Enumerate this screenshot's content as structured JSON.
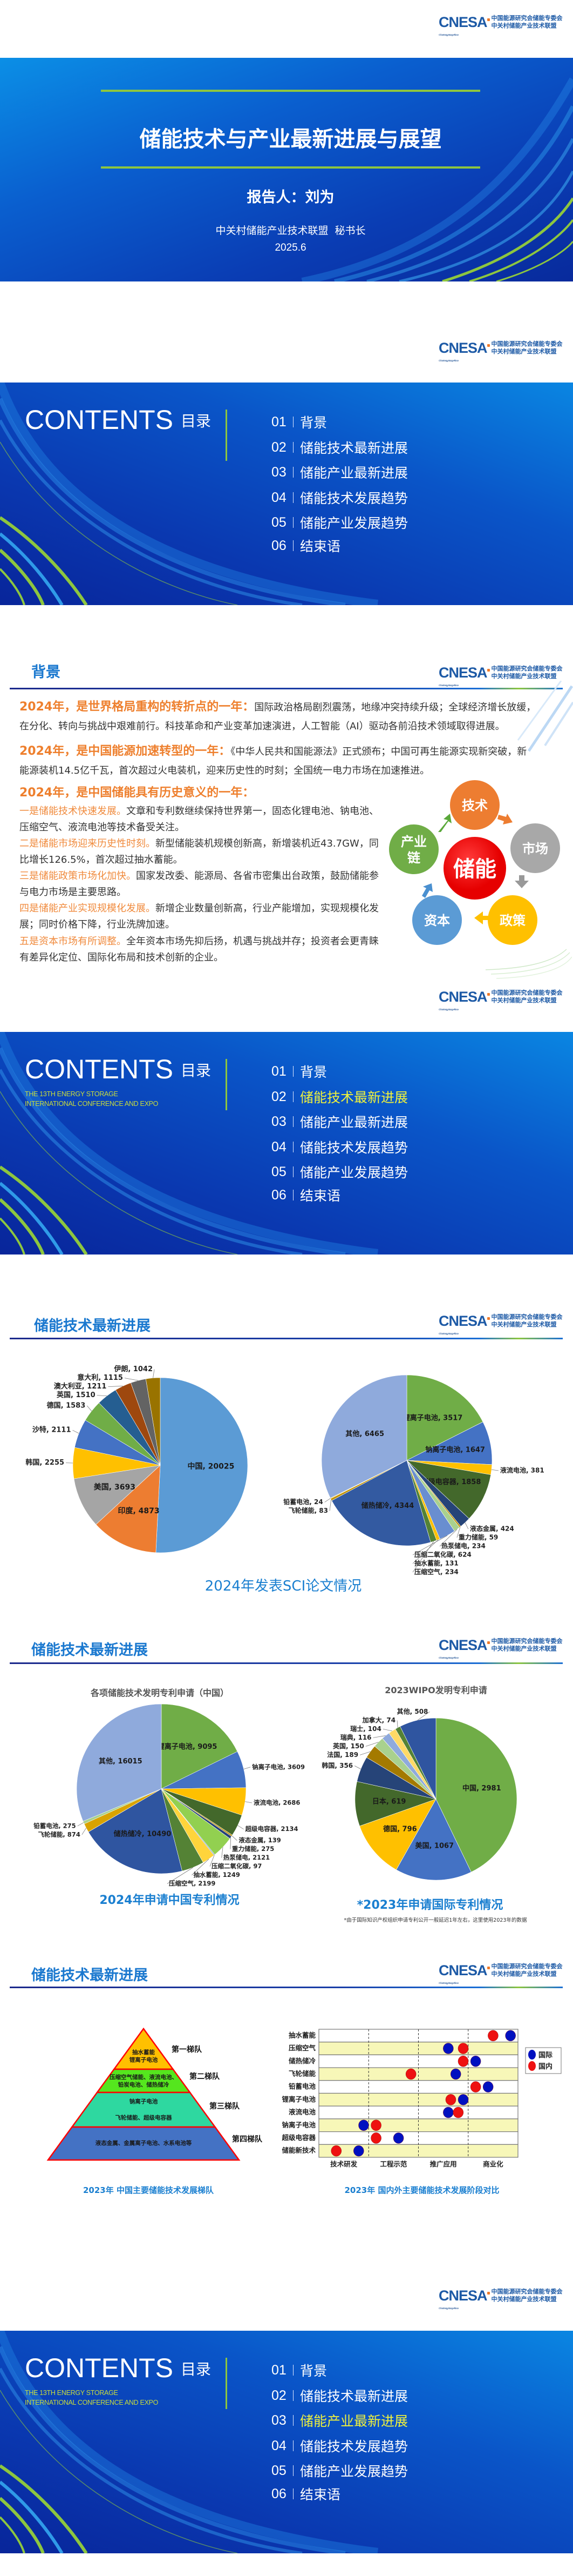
{
  "logo": {
    "mark": "CNESA",
    "english": "China Energy Storage Alliance",
    "line1": "中国能源研究会储能专委会",
    "line2": "中关村储能产业技术联盟"
  },
  "title_slide": {
    "title": "储能技术与产业最新进展与展望",
    "reporter": "报告人：刘为",
    "org": "中关村储能产业技术联盟  秘书长",
    "date": "2025.6"
  },
  "contents": {
    "heading": "CONTENTS",
    "heading_cn": "目录",
    "subtitle_line1": "THE 13TH ENERGY STORAGE",
    "subtitle_line2": "INTERNATIONAL CONFERENCE AND EXPO",
    "items": [
      {
        "num": "01",
        "label": "背景"
      },
      {
        "num": "02",
        "label": "储能技术最新进展"
      },
      {
        "num": "03",
        "label": "储能产业最新进展"
      },
      {
        "num": "04",
        "label": "储能技术发展趋势"
      },
      {
        "num": "05",
        "label": "储能产业发展趋势"
      },
      {
        "num": "06",
        "label": "结束语"
      }
    ],
    "highlight_color": "#f0f23c",
    "slides": [
      {
        "show_subtitle": false,
        "highlighted_item": null
      },
      {
        "show_subtitle": true,
        "highlighted_item": 1
      },
      {
        "show_subtitle": true,
        "highlighted_item": 2
      }
    ]
  },
  "background": {
    "title": "背景",
    "p1_heading": "2024年，是世界格局重构的转折点的一年：",
    "p1_body": "国际政治格局剧烈震荡，地缘冲突持续升级；全球经济增长放缓，在分化、转向与挑战中艰难前行。科技革命和产业变革加速演进，人工智能（AI）驱动各前沿技术领域取得进展。",
    "p2_heading": "2024年，是中国能源加速转型的一年：",
    "p2_body": "《中华人民共和国能源法》正式颁布；中国可再生能源实现新突破，新能源装机14.5亿千瓦，首次超过火电装机，迎来历史性的时刻；全国统一电力市场在加速推进。",
    "p3_heading": "2024年，是中国储能具有历史意义的一年：",
    "items": [
      {
        "heading": "一是储能技术快速发展。",
        "body": "文章和专利数继续保持世界第一，固态化锂电池、钠电池、压缩空气、液流电池等技术备受关注。"
      },
      {
        "heading": "二是储能市场迎来历史性时刻。",
        "body": "新型储能装机规模创新高，新增装机近43.7GW，同比增长126.5%，首次超过抽水蓄能。"
      },
      {
        "heading": "三是储能政策市场化加快。",
        "body": "国家发改委、能源局、各省市密集出台政策，鼓励储能参与电力市场是主要思路。"
      },
      {
        "heading": "四是储能产业实现规模化发展。",
        "body": "新增企业数量创新高，行业产能增加，实现规模化发展；同时价格下降，行业洗牌加速。"
      },
      {
        "heading": "五是资本市场有所调整。",
        "body": "全年资本市场先抑后扬，机遇与挑战并存；投资者会更青睐有差异化定位、国际化布局和技术创新的企业。"
      }
    ],
    "diagram": {
      "center": {
        "label": "储能",
        "color": "#ff0000"
      },
      "nodes": [
        {
          "label": "技术",
          "color": "#ed7d31"
        },
        {
          "label": "市场",
          "color": "#a0a0a0"
        },
        {
          "label": "政策",
          "color": "#ffc000"
        },
        {
          "label": "资本",
          "color": "#5b9bd5"
        },
        {
          "label": "产业",
          "label2": "链",
          "color": "#70ad47"
        }
      ]
    }
  },
  "tech_progress": {
    "title": "储能技术最新进展",
    "sci_caption": "2024年发表SCI论文情况",
    "cn_patent_caption": "2024年申请中国专利情况",
    "intl_patent_caption": "*2023年申请国际专利情况",
    "intl_patent_note": "*由于国际知识产权组织申请专利公开一般延迟1年左右，这里使用2023年的数据",
    "echelon_caption": "2023年 中国主要储能技术发展梯队",
    "stage_caption": "2023年 国内外主要储能技术发展阶段对比",
    "echelon": {
      "tiers": [
        {
          "label": "第一梯队",
          "lines": [
            "抽水蓄能",
            "锂离子电池"
          ],
          "color": "#ffc000"
        },
        {
          "label": "第二梯队",
          "lines": [
            "压缩空气储能、液流电池、",
            "铅炭电池、储热储冷"
          ],
          "color": "#55e61e"
        },
        {
          "label": "第三梯队",
          "lines": [
            "钠离子电池",
            "飞轮储能、超级电容器"
          ],
          "color": "#2ed8a0"
        },
        {
          "label": "第四梯队",
          "lines": [
            "液态金属、金属离子电池、水系电池等"
          ],
          "color": "#4472c4"
        }
      ],
      "outline_color": "#ff0000"
    }
  },
  "chart_data": [
    {
      "type": "pie",
      "title": "",
      "slices": [
        {
          "label": "中国",
          "value": 20025,
          "color": "#5b9bd5"
        },
        {
          "label": "印度",
          "value": 4873,
          "color": "#ed7d31"
        },
        {
          "label": "美国",
          "value": 3693,
          "color": "#a5a5a5"
        },
        {
          "label": "韩国",
          "value": 2255,
          "color": "#ffc000"
        },
        {
          "label": "沙特",
          "value": 2111,
          "color": "#4472c4"
        },
        {
          "label": "德国",
          "value": 1583,
          "color": "#70ad47"
        },
        {
          "label": "英国",
          "value": 1510,
          "color": "#255e91"
        },
        {
          "label": "澳大利亚",
          "value": 1211,
          "color": "#9e480e"
        },
        {
          "label": "意大利",
          "value": 1115,
          "color": "#636363"
        },
        {
          "label": "伊朗",
          "value": 1042,
          "color": "#997300"
        }
      ]
    },
    {
      "type": "pie",
      "title": "",
      "slices": [
        {
          "label": "锂离子电池",
          "value": 3517,
          "color": "#70ad47"
        },
        {
          "label": "钠离子电池",
          "value": 1647,
          "color": "#4472c4"
        },
        {
          "label": "液流电池",
          "value": 381,
          "color": "#ffc000"
        },
        {
          "label": "超级电容器",
          "value": 1858,
          "color": "#43682b"
        },
        {
          "label": "液态金属",
          "value": 424,
          "color": "#264478"
        },
        {
          "label": "重力储能",
          "value": 59,
          "color": "#bf9000"
        },
        {
          "label": "热泵储电",
          "value": 234,
          "color": "#a9d18e"
        },
        {
          "label": "压缩二氧化碳",
          "value": 624,
          "color": "#698ed0"
        },
        {
          "label": "抽水蓄能",
          "value": 131,
          "color": "#ffc000"
        },
        {
          "label": "压缩空气",
          "value": 234,
          "color": "#548235"
        },
        {
          "label": "储热储冷",
          "value": 4344,
          "color": "#335aa1"
        },
        {
          "label": "飞轮储能",
          "value": 83,
          "color": "#bf9000"
        },
        {
          "label": "铅蓄电池",
          "value": 24,
          "color": "#ffc000"
        },
        {
          "label": "其他",
          "value": 6465,
          "color": "#8faadc"
        }
      ]
    },
    {
      "type": "pie",
      "title": "各项储能技术发明专利申请（中国）",
      "slices": [
        {
          "label": "锂离子电池",
          "value": 9095,
          "color": "#70ad47"
        },
        {
          "label": "钠离子电池",
          "value": 3609,
          "color": "#4472c4"
        },
        {
          "label": "液流电池",
          "value": 2686,
          "color": "#ffc000"
        },
        {
          "label": "超级电容器",
          "value": 2134,
          "color": "#43682b"
        },
        {
          "label": "液态金属",
          "value": 139,
          "color": "#bf9000"
        },
        {
          "label": "重力储能",
          "value": 275,
          "color": "#264478"
        },
        {
          "label": "热泵储电",
          "value": 2121,
          "color": "#92d050"
        },
        {
          "label": "压缩二氧化碳",
          "value": 97,
          "color": "#7f9fd0"
        },
        {
          "label": "抽水蓄能",
          "value": 1249,
          "color": "#ffd43b"
        },
        {
          "label": "压缩空气",
          "value": 2199,
          "color": "#548235"
        },
        {
          "label": "储热储冷",
          "value": 10490,
          "color": "#2f55a0"
        },
        {
          "label": "飞轮储能",
          "value": 874,
          "color": "#d9a300"
        },
        {
          "label": "铅蓄电池",
          "value": 275,
          "color": "#a9d18e"
        },
        {
          "label": "其他",
          "value": 16015,
          "color": "#8faadc"
        }
      ]
    },
    {
      "type": "pie",
      "title": "2023WIPO发明专利申请",
      "slices": [
        {
          "label": "中国",
          "value": 2981,
          "color": "#70ad47"
        },
        {
          "label": "美国",
          "value": 1067,
          "color": "#4472c4"
        },
        {
          "label": "德国",
          "value": 796,
          "color": "#ffc000"
        },
        {
          "label": "日本",
          "value": 619,
          "color": "#43682b"
        },
        {
          "label": "韩国",
          "value": 356,
          "color": "#264478"
        },
        {
          "label": "法国",
          "value": 189,
          "color": "#a47a00"
        },
        {
          "label": "英国",
          "value": 150,
          "color": "#a9d18e"
        },
        {
          "label": "瑞典",
          "value": 116,
          "color": "#8faadc"
        },
        {
          "label": "瑞士",
          "value": 104,
          "color": "#ffd966"
        },
        {
          "label": "加拿大",
          "value": 74,
          "color": "#548235"
        },
        {
          "label": "其他",
          "value": 508,
          "color": "#2f55a0"
        }
      ]
    },
    {
      "type": "scatter",
      "title": "",
      "categories": [
        "抽水蓄能",
        "压缩空气",
        "储热储冷",
        "飞轮储能",
        "铅蓄电池",
        "锂离子电池",
        "液流电池",
        "钠离子电池",
        "超级电容器",
        "储能新技术"
      ],
      "x_stages": [
        "技术研发",
        "工程示范",
        "推广应用",
        "商业化"
      ],
      "xlim": [
        0,
        4
      ],
      "row_colors": [
        "#ffffff",
        "#f7f7b8"
      ],
      "series": [
        {
          "name": "国际",
          "color": "#0010c0",
          "values": [
            3.85,
            2.6,
            3.15,
            2.75,
            3.4,
            2.9,
            2.6,
            0.9,
            1.6,
            0.8
          ]
        },
        {
          "name": "国内",
          "color": "#ee1111",
          "values": [
            3.5,
            2.9,
            2.9,
            1.85,
            3.15,
            2.65,
            2.8,
            1.15,
            1.15,
            0.35
          ]
        }
      ],
      "legend": "right"
    }
  ]
}
